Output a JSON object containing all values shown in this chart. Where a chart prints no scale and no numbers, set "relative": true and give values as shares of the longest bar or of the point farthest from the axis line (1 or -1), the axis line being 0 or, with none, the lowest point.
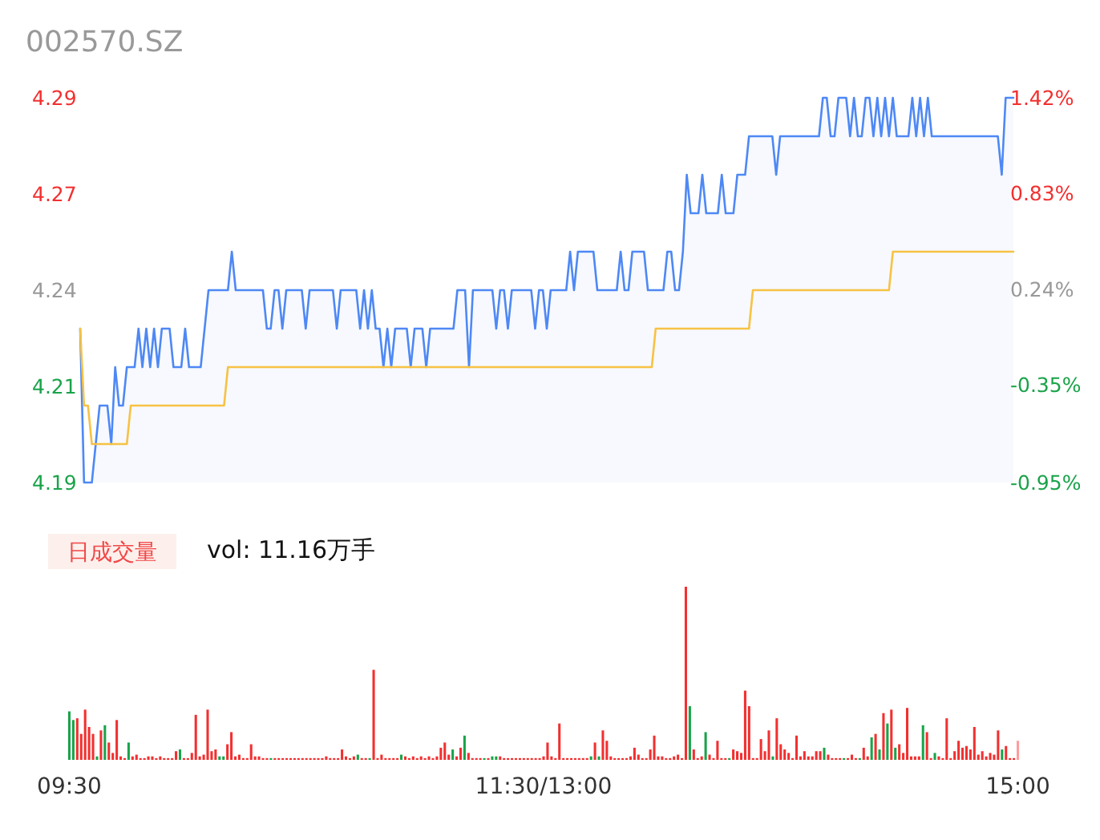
{
  "chart_data": [
    {
      "type": "line",
      "title": "002570.SZ",
      "categories": [
        null,
        null,
        null,
        null,
        null,
        null,
        null,
        null,
        null,
        null,
        null,
        null,
        null,
        null,
        null,
        null,
        null,
        null,
        null,
        null,
        null,
        null,
        null,
        null,
        null,
        null,
        null,
        null,
        null,
        null,
        null,
        null,
        null,
        null,
        null,
        null,
        null,
        null,
        null,
        null,
        null,
        null,
        null,
        null,
        null,
        null,
        null,
        null,
        null,
        null,
        null,
        null,
        null,
        null,
        null,
        null,
        null,
        null,
        null,
        null,
        null,
        null,
        null,
        null,
        null,
        null,
        null,
        null,
        null,
        null,
        null,
        null,
        null,
        null,
        null,
        null,
        null,
        null,
        null,
        null,
        null,
        null,
        null,
        null,
        null,
        null,
        null,
        null,
        null,
        null,
        null,
        null,
        null,
        null,
        null,
        null,
        null,
        null,
        null,
        null,
        null,
        null,
        null,
        null,
        null,
        null,
        null,
        null,
        null,
        null,
        null,
        null,
        null,
        null,
        null,
        null,
        null,
        null,
        null,
        null,
        null,
        null,
        null,
        null,
        null,
        null,
        null,
        null,
        null,
        null,
        null,
        null,
        null,
        null,
        null,
        null,
        null,
        null,
        null,
        null,
        null,
        null,
        null,
        null,
        null,
        null,
        null,
        null,
        null,
        null,
        null,
        null,
        null,
        null,
        null,
        null,
        null,
        null,
        null,
        null,
        null,
        null,
        null,
        null,
        null,
        null,
        null,
        null,
        null,
        null,
        null,
        null,
        null,
        null,
        null,
        null,
        null,
        null,
        null,
        null,
        null,
        null,
        null,
        null,
        null,
        null,
        null,
        null,
        null,
        null,
        null,
        null,
        null,
        null,
        null,
        null,
        null,
        null,
        null,
        null,
        null,
        null,
        null,
        null,
        null,
        null,
        null,
        null,
        null,
        null,
        null,
        null,
        null,
        null,
        null,
        null,
        null,
        null,
        null,
        null,
        null,
        null,
        null,
        null,
        null,
        null,
        null,
        null,
        null,
        null,
        null,
        null,
        null,
        null,
        null,
        null,
        null,
        null,
        null,
        null,
        null
      ],
      "series": [
        {
          "type": "area",
          "color": "#4e88f5",
          "values": [
            4.23,
            4.19,
            4.19,
            4.19,
            4.2,
            4.21,
            4.21,
            4.21,
            4.2,
            4.22,
            4.21,
            4.21,
            4.22,
            4.22,
            4.22,
            4.23,
            4.22,
            4.23,
            4.22,
            4.23,
            4.22,
            4.23,
            4.23,
            4.23,
            4.22,
            4.22,
            4.22,
            4.23,
            4.22,
            4.22,
            4.22,
            4.22,
            4.23,
            4.24,
            4.24,
            4.24,
            4.24,
            4.24,
            4.24,
            4.25,
            4.24,
            4.24,
            4.24,
            4.24,
            4.24,
            4.24,
            4.24,
            4.24,
            4.23,
            4.23,
            4.24,
            4.24,
            4.23,
            4.24,
            4.24,
            4.24,
            4.24,
            4.24,
            4.23,
            4.24,
            4.24,
            4.24,
            4.24,
            4.24,
            4.24,
            4.24,
            4.23,
            4.24,
            4.24,
            4.24,
            4.24,
            4.24,
            4.23,
            4.24,
            4.23,
            4.24,
            4.23,
            4.23,
            4.22,
            4.23,
            4.22,
            4.23,
            4.23,
            4.23,
            4.23,
            4.22,
            4.23,
            4.23,
            4.23,
            4.22,
            4.23,
            4.23,
            4.23,
            4.23,
            4.23,
            4.23,
            4.23,
            4.24,
            4.24,
            4.24,
            4.22,
            4.24,
            4.24,
            4.24,
            4.24,
            4.24,
            4.24,
            4.23,
            4.24,
            4.24,
            4.23,
            4.24,
            4.24,
            4.24,
            4.24,
            4.24,
            4.24,
            4.23,
            4.24,
            4.24,
            4.23,
            4.24,
            4.24,
            4.24,
            4.24,
            4.24,
            4.25,
            4.24,
            4.25,
            4.25,
            4.25,
            4.25,
            4.25,
            4.24,
            4.24,
            4.24,
            4.24,
            4.24,
            4.24,
            4.25,
            4.24,
            4.24,
            4.25,
            4.25,
            4.25,
            4.25,
            4.24,
            4.24,
            4.24,
            4.24,
            4.24,
            4.25,
            4.25,
            4.24,
            4.24,
            4.25,
            4.27,
            4.26,
            4.26,
            4.26,
            4.27,
            4.26,
            4.26,
            4.26,
            4.26,
            4.27,
            4.26,
            4.26,
            4.26,
            4.27,
            4.27,
            4.27,
            4.28,
            4.28,
            4.28,
            4.28,
            4.28,
            4.28,
            4.28,
            4.27,
            4.28,
            4.28,
            4.28,
            4.28,
            4.28,
            4.28,
            4.28,
            4.28,
            4.28,
            4.28,
            4.28,
            4.29,
            4.29,
            4.28,
            4.28,
            4.29,
            4.29,
            4.29,
            4.28,
            4.29,
            4.28,
            4.28,
            4.29,
            4.29,
            4.28,
            4.29,
            4.28,
            4.29,
            4.28,
            4.29,
            4.28,
            4.28,
            4.28,
            4.28,
            4.29,
            4.28,
            4.29,
            4.28,
            4.29,
            4.28,
            4.28,
            4.28,
            4.28,
            4.28,
            4.28,
            4.28,
            4.28,
            4.28,
            4.28,
            4.28,
            4.28,
            4.28,
            4.28,
            4.28,
            4.28,
            4.28,
            4.28,
            4.27,
            4.29,
            4.29,
            4.29
          ]
        },
        {
          "type": "line",
          "color": "#f7c244",
          "values": [
            4.23,
            4.21,
            4.21,
            4.2,
            4.2,
            4.2,
            4.2,
            4.2,
            4.2,
            4.2,
            4.2,
            4.2,
            4.2,
            4.21,
            4.21,
            4.21,
            4.21,
            4.21,
            4.21,
            4.21,
            4.21,
            4.21,
            4.21,
            4.21,
            4.21,
            4.21,
            4.21,
            4.21,
            4.21,
            4.21,
            4.21,
            4.21,
            4.21,
            4.21,
            4.21,
            4.21,
            4.21,
            4.21,
            4.22,
            4.22,
            4.22,
            4.22,
            4.22,
            4.22,
            4.22,
            4.22,
            4.22,
            4.22,
            4.22,
            4.22,
            4.22,
            4.22,
            4.22,
            4.22,
            4.22,
            4.22,
            4.22,
            4.22,
            4.22,
            4.22,
            4.22,
            4.22,
            4.22,
            4.22,
            4.22,
            4.22,
            4.22,
            4.22,
            4.22,
            4.22,
            4.22,
            4.22,
            4.22,
            4.22,
            4.22,
            4.22,
            4.22,
            4.22,
            4.22,
            4.22,
            4.22,
            4.22,
            4.22,
            4.22,
            4.22,
            4.22,
            4.22,
            4.22,
            4.22,
            4.22,
            4.22,
            4.22,
            4.22,
            4.22,
            4.22,
            4.22,
            4.22,
            4.22,
            4.22,
            4.22,
            4.22,
            4.22,
            4.22,
            4.22,
            4.22,
            4.22,
            4.22,
            4.22,
            4.22,
            4.22,
            4.22,
            4.22,
            4.22,
            4.22,
            4.22,
            4.22,
            4.22,
            4.22,
            4.22,
            4.22,
            4.22,
            4.22,
            4.22,
            4.22,
            4.22,
            4.22,
            4.22,
            4.22,
            4.22,
            4.22,
            4.22,
            4.22,
            4.22,
            4.22,
            4.22,
            4.22,
            4.22,
            4.22,
            4.22,
            4.22,
            4.22,
            4.22,
            4.22,
            4.22,
            4.22,
            4.22,
            4.22,
            4.22,
            4.23,
            4.23,
            4.23,
            4.23,
            4.23,
            4.23,
            4.23,
            4.23,
            4.23,
            4.23,
            4.23,
            4.23,
            4.23,
            4.23,
            4.23,
            4.23,
            4.23,
            4.23,
            4.23,
            4.23,
            4.23,
            4.23,
            4.23,
            4.23,
            4.23,
            4.24,
            4.24,
            4.24,
            4.24,
            4.24,
            4.24,
            4.24,
            4.24,
            4.24,
            4.24,
            4.24,
            4.24,
            4.24,
            4.24,
            4.24,
            4.24,
            4.24,
            4.24,
            4.24,
            4.24,
            4.24,
            4.24,
            4.24,
            4.24,
            4.24,
            4.24,
            4.24,
            4.24,
            4.24,
            4.24,
            4.24,
            4.24,
            4.24,
            4.24,
            4.24,
            4.24,
            4.25,
            4.25,
            4.25,
            4.25,
            4.25,
            4.25,
            4.25,
            4.25,
            4.25,
            4.25,
            4.25,
            4.25,
            4.25,
            4.25,
            4.25,
            4.25,
            4.25,
            4.25,
            4.25,
            4.25,
            4.25,
            4.25,
            4.25,
            4.25,
            4.25,
            4.25,
            4.25,
            4.25,
            4.25,
            4.25,
            4.25,
            4.25
          ]
        }
      ],
      "ylim": [
        4.19,
        4.29
      ],
      "yticks": [
        4.19,
        {
          "value": 4.215,
          "label": "4.21"
        },
        4.24,
        {
          "value": 4.265,
          "label": "4.27"
        },
        4.29
      ],
      "y2lim": [
        -0.95,
        1.42
      ],
      "y2ticks": [
        {
          "value": -0.95,
          "label": "-0.95%"
        },
        {
          "value": -0.35,
          "label": "-0.35%"
        },
        {
          "value": 0.24,
          "label": "0.24%"
        },
        {
          "value": 0.83,
          "label": "0.83%"
        },
        {
          "value": 1.42,
          "label": "1.42%"
        }
      ],
      "tick_labels": "y"
    },
    {
      "type": "bar",
      "title": "日成交量",
      "subtitle": "vol: 11.16万手",
      "relative": true,
      "tick_labels": "x",
      "categories": [
        "09:30",
        null,
        null,
        null,
        null,
        null,
        null,
        null,
        null,
        null,
        null,
        null,
        null,
        null,
        null,
        null,
        null,
        null,
        null,
        null,
        null,
        null,
        null,
        null,
        null,
        null,
        null,
        null,
        null,
        null,
        null,
        null,
        null,
        null,
        null,
        null,
        null,
        null,
        null,
        null,
        null,
        null,
        null,
        null,
        null,
        null,
        null,
        null,
        null,
        null,
        null,
        null,
        null,
        null,
        null,
        null,
        null,
        null,
        null,
        null,
        null,
        null,
        null,
        null,
        null,
        null,
        null,
        null,
        null,
        null,
        null,
        null,
        null,
        null,
        null,
        null,
        null,
        null,
        null,
        null,
        null,
        null,
        null,
        null,
        null,
        null,
        null,
        null,
        null,
        null,
        null,
        null,
        null,
        null,
        null,
        null,
        null,
        null,
        null,
        null,
        null,
        null,
        null,
        null,
        null,
        null,
        null,
        null,
        null,
        null,
        null,
        null,
        null,
        null,
        null,
        null,
        null,
        null,
        null,
        null,
        "11:30/13:00",
        null,
        null,
        null,
        null,
        null,
        null,
        null,
        null,
        null,
        null,
        null,
        null,
        null,
        null,
        null,
        null,
        null,
        null,
        null,
        null,
        null,
        null,
        null,
        null,
        null,
        null,
        null,
        null,
        null,
        null,
        null,
        null,
        null,
        null,
        null,
        null,
        null,
        null,
        null,
        null,
        null,
        null,
        null,
        null,
        null,
        null,
        null,
        null,
        null,
        null,
        null,
        null,
        null,
        null,
        null,
        null,
        null,
        null,
        null,
        null,
        null,
        null,
        null,
        null,
        null,
        null,
        null,
        null,
        null,
        null,
        null,
        null,
        null,
        null,
        null,
        null,
        null,
        null,
        null,
        null,
        null,
        null,
        null,
        null,
        null,
        null,
        null,
        null,
        null,
        null,
        null,
        null,
        null,
        null,
        null,
        null,
        null,
        null,
        null,
        null,
        null,
        null,
        null,
        null,
        null,
        null,
        null,
        null,
        null,
        null,
        null,
        null,
        null,
        null,
        null,
        null,
        null,
        null,
        null,
        "15:00"
      ],
      "values": [
        0.28,
        0.23,
        0.24,
        0.15,
        0.29,
        0.19,
        0.15,
        0.02,
        0.17,
        0.2,
        0.1,
        0.04,
        0.23,
        0.02,
        0.01,
        0.1,
        0.02,
        0.03,
        0.01,
        0.01,
        0.02,
        0.02,
        0.01,
        0.02,
        0.01,
        0.01,
        0.01,
        0.05,
        0.06,
        0.01,
        0.01,
        0.04,
        0.26,
        0.02,
        0.03,
        0.29,
        0.05,
        0.06,
        0.02,
        0.02,
        0.09,
        0.16,
        0.02,
        0.03,
        0.01,
        0.01,
        0.09,
        0.02,
        0.02,
        0.01,
        0.01,
        0.01,
        0.01,
        0.01,
        0.01,
        0.01,
        0.01,
        0.01,
        0.01,
        0.01,
        0.01,
        0.01,
        0.01,
        0.01,
        0.01,
        0.02,
        0.01,
        0.01,
        0.01,
        0.06,
        0.02,
        0.01,
        0.02,
        0.03,
        0.01,
        0.01,
        0.01,
        0.52,
        0.01,
        0.03,
        0.01,
        0.01,
        0.01,
        0.01,
        0.03,
        0.02,
        0.01,
        0.02,
        0.01,
        0.02,
        0.01,
        0.02,
        0.01,
        0.02,
        0.07,
        0.1,
        0.03,
        0.06,
        0.02,
        0.07,
        0.14,
        0.04,
        0.01,
        0.01,
        0.01,
        0.01,
        0.01,
        0.02,
        0.02,
        0.02,
        0.01,
        0.01,
        0.01,
        0.01,
        0.01,
        0.01,
        0.01,
        0.01,
        0.01,
        0.01,
        0.02,
        0.1,
        0.02,
        0.01,
        0.21,
        0.01,
        0.01,
        0.01,
        0.01,
        0.01,
        0.01,
        0.01,
        0.02,
        0.1,
        0.02,
        0.17,
        0.11,
        0.02,
        0.01,
        0.01,
        0.01,
        0.01,
        0.02,
        0.07,
        0.03,
        0.01,
        0.01,
        0.06,
        0.14,
        0.02,
        0.02,
        0.01,
        0.01,
        0.02,
        0.03,
        0.01,
        1,
        0.31,
        0.06,
        0.01,
        0.02,
        0.16,
        0.03,
        0.01,
        0.11,
        0.01,
        0.01,
        0.01,
        0.06,
        0.05,
        0.04,
        0.4,
        0.31,
        0.01,
        0.01,
        0.12,
        0.05,
        0.17,
        0.02,
        0.24,
        0.09,
        0.06,
        0.04,
        0.01,
        0.14,
        0.02,
        0.05,
        0.02,
        0.02,
        0.05,
        0.05,
        0.07,
        0.03,
        0.01,
        0.01,
        0.01,
        0.01,
        0.01,
        0.03,
        0.01,
        0.01,
        0.07,
        0.02,
        0.13,
        0.15,
        0.06,
        0.27,
        0.21,
        0.29,
        0.07,
        0.09,
        0.04,
        0.3,
        0.02,
        0.02,
        0.02,
        0.2,
        0.16,
        0.01,
        0.04,
        0.02,
        0.01,
        0.24,
        0.01,
        0.05,
        0.11,
        0.07,
        0.08,
        0.06,
        0.19,
        0.03,
        0.05,
        0.02,
        0.04,
        0.03,
        0.17,
        0.06,
        0.08,
        0.01,
        0.01,
        0.11
      ],
      "colors": [
        "#1aa34a",
        "#1aa34a",
        "#f23030",
        "#f23030",
        "#f23030",
        "#f23030",
        "#f23030",
        "#1aa34a",
        "#f23030",
        "#1aa34a",
        "#f23030",
        "#f23030",
        "#f23030",
        "#f23030",
        "#f23030",
        "#1aa34a",
        "#f23030",
        "#f23030",
        "#f23030",
        "#f23030",
        "#f23030",
        "#f23030",
        "#f23030",
        "#f23030",
        "#f23030",
        "#f23030",
        "#f23030",
        "#f23030",
        "#1aa34a",
        "#f23030",
        "#f23030",
        "#f23030",
        "#f23030",
        "#f23030",
        "#f23030",
        "#f23030",
        "#f23030",
        "#f23030",
        "#1aa34a",
        "#1aa34a",
        "#f23030",
        "#f23030",
        "#f23030",
        "#f23030",
        "#f23030",
        "#f23030",
        "#f23030",
        "#f23030",
        "#f23030",
        "#f23030",
        "#f23030",
        "#1aa34a",
        "#f23030",
        "#f23030",
        "#f23030",
        "#f23030",
        "#f23030",
        "#f23030",
        "#f23030",
        "#f23030",
        "#f23030",
        "#f23030",
        "#f23030",
        "#f23030",
        "#f23030",
        "#f23030",
        "#f23030",
        "#f23030",
        "#f23030",
        "#f23030",
        "#f23030",
        "#f23030",
        "#f23030",
        "#1aa34a",
        "#f23030",
        "#f23030",
        "#1aa34a",
        "#f23030",
        "#f23030",
        "#f23030",
        "#f23030",
        "#f23030",
        "#f23030",
        "#f23030",
        "#1aa34a",
        "#f23030",
        "#f23030",
        "#f23030",
        "#f23030",
        "#f23030",
        "#f23030",
        "#f23030",
        "#f23030",
        "#f23030",
        "#f23030",
        "#f23030",
        "#f23030",
        "#1aa34a",
        "#f23030",
        "#f23030",
        "#1aa34a",
        "#f23030",
        "#f23030",
        "#f23030",
        "#f23030",
        "#1aa34a",
        "#f23030",
        "#1aa34a",
        "#1aa34a",
        "#f23030",
        "#f23030",
        "#f23030",
        "#f23030",
        "#f23030",
        "#f23030",
        "#f23030",
        "#f23030",
        "#f23030",
        "#f23030",
        "#f23030",
        "#f23030",
        "#f23030",
        "#f23030",
        "#f23030",
        "#f23030",
        "#f23030",
        "#f23030",
        "#f23030",
        "#f23030",
        "#f23030",
        "#f23030",
        "#f23030",
        "#1aa34a",
        "#f23030",
        "#1aa34a",
        "#f23030",
        "#f23030",
        "#f23030",
        "#f23030",
        "#f23030",
        "#f23030",
        "#f23030",
        "#f23030",
        "#f23030",
        "#f23030",
        "#f23030",
        "#f23030",
        "#f23030",
        "#f23030",
        "#f23030",
        "#f23030",
        "#f23030",
        "#f23030",
        "#f23030",
        "#f23030",
        "#f23030",
        "#f23030",
        "#1aa34a",
        "#f23030",
        "#f23030",
        "#f23030",
        "#1aa34a",
        "#f23030",
        "#f23030",
        "#f23030",
        "#f23030",
        "#f23030",
        "#1aa34a",
        "#f23030",
        "#f23030",
        "#f23030",
        "#f23030",
        "#f23030",
        "#f23030",
        "#f23030",
        "#f23030",
        "#f23030",
        "#f23030",
        "#1aa34a",
        "#f23030",
        "#f23030",
        "#f23030",
        "#f23030",
        "#f23030",
        "#f23030",
        "#f23030",
        "#f23030",
        "#f23030",
        "#f23030",
        "#f23030",
        "#f23030",
        "#1aa34a",
        "#f23030",
        "#f23030",
        "#f23030",
        "#f23030",
        "#1aa34a",
        "#f23030",
        "#f23030",
        "#f23030",
        "#1aa34a",
        "#f23030",
        "#f23030",
        "#1aa34a",
        "#f23030",
        "#1aa34a",
        "#f23030",
        "#1aa34a",
        "#f23030",
        "#1aa34a",
        "#f23030",
        "#f23030",
        "#f23030",
        "#f23030",
        "#f23030",
        "#f23030",
        "#1aa34a",
        "#f23030",
        "#f23030",
        "#1aa34a",
        "#f23030",
        "#f23030",
        "#f23030",
        "#f23030",
        "#f23030",
        "#f23030",
        "#f23030",
        "#f23030",
        "#f23030",
        "#f23030",
        "#f23030",
        "#f23030",
        "#f23030",
        "#f23030",
        "#f23030",
        "#f23030",
        "#1aa34a",
        "#f23030",
        "#f23030",
        "#f23030",
        "#ff9d9d"
      ]
    }
  ]
}
